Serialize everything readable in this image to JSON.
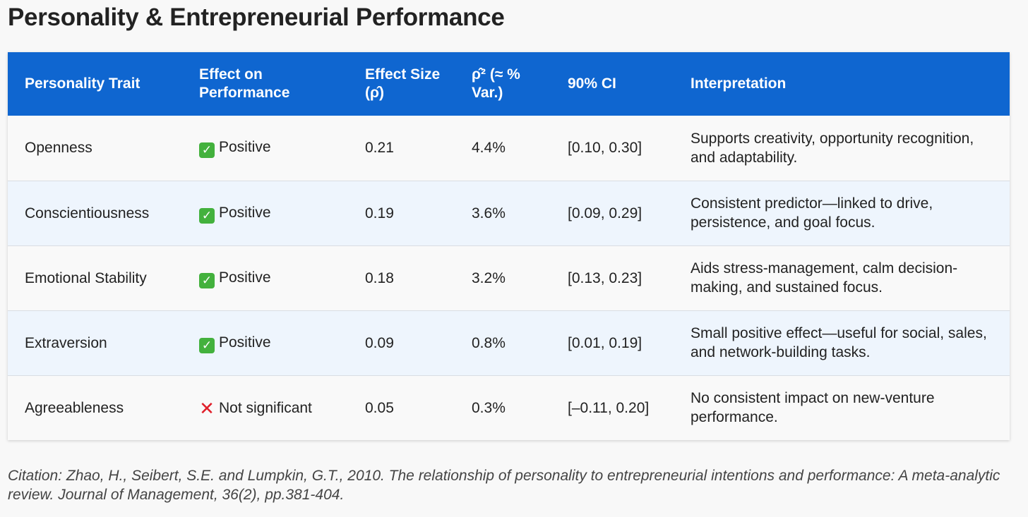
{
  "title": "Personality & Entrepreneurial Performance",
  "table": {
    "headers": [
      "Personality Trait",
      "Effect on Performance",
      "Effect Size (ρ̂)",
      "ρ̂² (≈ % Var.)",
      "90% CI",
      "Interpretation"
    ],
    "rows": [
      {
        "trait": "Openness",
        "effect_icon": "check-mark-icon",
        "effect": "Positive",
        "size": "0.21",
        "variance": "4.4%",
        "ci": "[0.10, 0.30]",
        "interpretation": "Supports creativity, opportunity recognition, and adaptability."
      },
      {
        "trait": "Conscientiousness",
        "effect_icon": "check-mark-icon",
        "effect": "Positive",
        "size": "0.19",
        "variance": "3.6%",
        "ci": "[0.09, 0.29]",
        "interpretation": "Consistent predictor—linked to drive, persistence, and goal focus."
      },
      {
        "trait": "Emotional Stability",
        "effect_icon": "check-mark-icon",
        "effect": "Positive",
        "size": "0.18",
        "variance": "3.2%",
        "ci": "[0.13, 0.23]",
        "interpretation": "Aids stress-management, calm decision-making, and sustained focus."
      },
      {
        "trait": "Extraversion",
        "effect_icon": "check-mark-icon",
        "effect": "Positive",
        "size": "0.09",
        "variance": "0.8%",
        "ci": "[0.01, 0.19]",
        "interpretation": "Small positive effect—useful for social, sales, and network-building tasks."
      },
      {
        "trait": "Agreeableness",
        "effect_icon": "cross-mark-icon",
        "effect": "Not significant",
        "size": "0.05",
        "variance": "0.3%",
        "ci": "[–0.11, 0.20]",
        "interpretation": "No consistent impact on new-venture performance."
      }
    ]
  },
  "citation": "Citation: Zhao, H., Seibert, S.E. and Lumpkin, G.T., 2010. The relationship of personality to entrepreneurial intentions and performance: A meta-analytic review. Journal of Management, 36(2), pp.381-404.",
  "colors": {
    "header_bg": "#0f66d0",
    "row_alt_bg": "#eef5fd",
    "check_green": "#43b13d",
    "cross_red": "#e0202b"
  }
}
